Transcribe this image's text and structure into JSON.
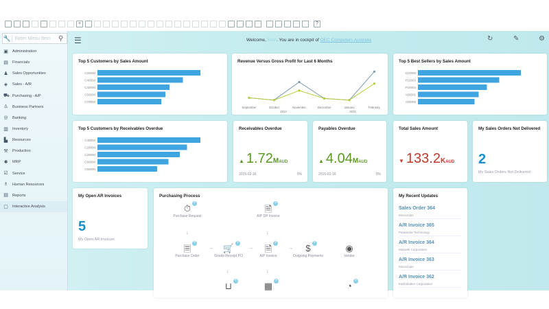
{
  "toolbar": {
    "icons": [
      "form-icon",
      "print-icon",
      "preview-icon",
      "email-icon",
      "browser-icon",
      "sms-icon",
      "fax-icon",
      "export-icon",
      "move-icon",
      "filter-icon",
      "find-icon",
      "add-icon",
      "first-icon",
      "previous-icon",
      "next-icon",
      "last-icon",
      "funnel-icon",
      "sort-icon",
      "link-icon",
      "base-doc-icon",
      "target-doc-icon",
      "gross-profit-icon",
      "payment-icon",
      "journal-icon",
      "layout-icon",
      "settings-icon",
      "doc-form-icon",
      "cockpit-icon",
      "widget-icon",
      "user-icon",
      "menu-icon",
      "grid-icon",
      "open-icon",
      "copy-icon",
      "help-icon"
    ]
  },
  "sidebar": {
    "search_placeholder": "Enter Menu Item",
    "items": [
      {
        "label": "Administration",
        "icon": "administration-icon"
      },
      {
        "label": "Financials",
        "icon": "financials-icon"
      },
      {
        "label": "Sales Opportunities",
        "icon": "sales-opportunities-icon"
      },
      {
        "label": "Sales - A/R",
        "icon": "sales-ar-icon"
      },
      {
        "label": "Purchasing - A/P",
        "icon": "cart-icon"
      },
      {
        "label": "Business Partners",
        "icon": "person-icon"
      },
      {
        "label": "Banking",
        "icon": "bank-icon"
      },
      {
        "label": "Inventory",
        "icon": "inventory-icon"
      },
      {
        "label": "Resources",
        "icon": "resources-icon"
      },
      {
        "label": "Production",
        "icon": "production-icon"
      },
      {
        "label": "MRP",
        "icon": "mrp-icon"
      },
      {
        "label": "Service",
        "icon": "service-icon"
      },
      {
        "label": "Human Resources",
        "icon": "human-resources-icon"
      },
      {
        "label": "Reports",
        "icon": "reports-icon"
      },
      {
        "label": "Interactive Analysis",
        "icon": "analysis-icon"
      }
    ]
  },
  "header": {
    "welcome_prefix": "Welcome, ",
    "user": "Beth",
    "welcome_mid": ". You are in cockpit of ",
    "company": "OEC Computers Australia"
  },
  "cards": {
    "top_sales": {
      "title": "Top 5 Customers by Sales Amount"
    },
    "rev_profit": {
      "title": "Revenue Versus Gross Profit for Last 6 Months"
    },
    "best_sellers": {
      "title": "Top 5 Best Sellers by Sales Amount"
    },
    "top_recv": {
      "title": "Top 5 Customers by Receivables Overdue"
    },
    "recv_overdue": {
      "title": "Receivables Overdue",
      "value": "1.72",
      "unit_big": "M",
      "unit_small": "AUD",
      "date": "2015-02-16",
      "pct": "0%",
      "trend": "up"
    },
    "pay_overdue": {
      "title": "Payables Overdue",
      "value": "4.04",
      "unit_big": "M",
      "unit_small": "AUD",
      "date": "2015-02-16",
      "pct": "0%",
      "trend": "up"
    },
    "total_sales": {
      "title": "Total Sales Amount",
      "value": "133.2",
      "unit_big": "K",
      "unit_small": "AUD",
      "trend": "down"
    },
    "so_not_delivered": {
      "title": "My Sales Orders Not Delivered",
      "value": "2",
      "sub": "My Sales Orders Not Delivered"
    },
    "open_ar": {
      "title": "My Open AR Invoices",
      "value": "5",
      "sub": "My Open AR Invoices"
    },
    "purchasing": {
      "title": "Purchasing Process",
      "nodes": [
        "Purchase Request",
        "A/P DP Invoice",
        "Purchase Order",
        "Goods Receipt PO",
        "A/P Invoice",
        "Outgoing Payments",
        "Vendor"
      ]
    },
    "recent": {
      "title": "My Recent Updates",
      "items": [
        {
          "title": "Sales Order 364",
          "sub": "Microchips"
        },
        {
          "title": "A/R Invoice 365",
          "sub": "Parameter Technology"
        },
        {
          "title": "A/R Invoice 364",
          "sub": "Maxwell Corporation"
        },
        {
          "title": "A/R Invoice 363",
          "sub": "Microchips"
        },
        {
          "title": "A/R Invoice 362",
          "sub": "Earthshaker Corporation"
        }
      ]
    }
  },
  "chart_data": [
    {
      "type": "bar",
      "title": "Top 5 Customers by Sales Amount",
      "categories": [
        "C20000",
        "C40000",
        "C42000",
        "C50000",
        "C70000"
      ],
      "values": [
        100,
        83,
        70,
        66,
        62
      ]
    },
    {
      "type": "line",
      "title": "Revenue Versus Gross Profit for Last 6 Months",
      "categories": [
        "September",
        "October",
        "November",
        "December",
        "January",
        "February"
      ],
      "groups": [
        "2014",
        "2015"
      ],
      "series": [
        {
          "values": [
            12,
            5,
            62,
            10,
            5,
            95
          ],
          "color": "#7b9bb0"
        },
        {
          "values": [
            12,
            5,
            35,
            10,
            5,
            57
          ],
          "color": "#b5cf3c"
        }
      ]
    },
    {
      "type": "bar",
      "title": "Top 5 Best Sellers by Sales Amount",
      "categories": [
        "S10006",
        "P10003",
        "P10004",
        "A00001",
        "A00005"
      ],
      "values": [
        100,
        79,
        67,
        59,
        55
      ]
    },
    {
      "type": "bar",
      "title": "Top 5 Customers by Receivables Overdue",
      "categories": [
        "C40000",
        "C20000",
        "C20000",
        "C60000",
        "C50000"
      ],
      "values": [
        100,
        87,
        80,
        69,
        58
      ]
    }
  ],
  "colors": {
    "bar": "#3fa5e0",
    "up": "#5a9a1e",
    "down": "#c0392b",
    "count": "#1a8fc9"
  }
}
